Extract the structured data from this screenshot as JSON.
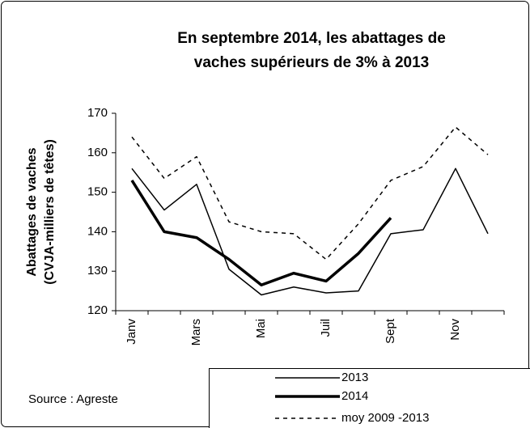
{
  "chart_data": {
    "type": "line",
    "title": [
      "En septembre 2014, les abattages de",
      "vaches supérieurs de 3% à 2013"
    ],
    "y_label": [
      "Abattages de vaches",
      "(CVJA-milliers de  têtes)"
    ],
    "source": "Source : Agreste",
    "categories": [
      "Janv",
      null,
      "Mars",
      null,
      "Mai",
      null,
      "Juil",
      null,
      "Sept",
      null,
      "Nov",
      null
    ],
    "ylim": [
      120,
      170
    ],
    "yticks": [
      120,
      130,
      140,
      150,
      160,
      170
    ],
    "series": [
      {
        "name": "2013",
        "color": "#000000",
        "width": 1.5,
        "style": "solid",
        "values": [
          156,
          145.5,
          152,
          130.5,
          124,
          126,
          124.5,
          125,
          139.5,
          140.5,
          156,
          139.5
        ]
      },
      {
        "name": "2014",
        "color": "#000000",
        "width": 3.5,
        "style": "solid",
        "values": [
          153,
          140,
          138.5,
          133,
          126.5,
          129.5,
          127.5,
          134.5,
          143.5,
          null,
          null,
          null
        ]
      },
      {
        "name": "moy 2009 -2013",
        "color": "#000000",
        "width": 1.5,
        "style": "dashed",
        "values": [
          164,
          153.5,
          159,
          142.5,
          140,
          139.5,
          133,
          142,
          153,
          156.5,
          166.5,
          159.5
        ]
      }
    ]
  }
}
